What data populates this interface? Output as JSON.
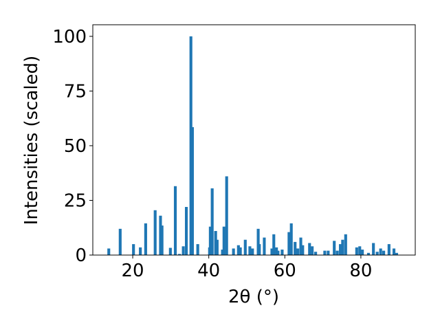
{
  "chart_data": {
    "type": "bar",
    "x_label": "2θ (°)",
    "y_label": "Intensities (scaled)",
    "color": "#1f77b4",
    "x": [
      13.7,
      16.7,
      20.2,
      22,
      23.4,
      25.9,
      27.3,
      27.7,
      29.9,
      31.2,
      32.3,
      33.3,
      34.1,
      35.3,
      35.7,
      37.1,
      40.2,
      40.4,
      40.9,
      41.8,
      42.2,
      43.6,
      44,
      44.7,
      46.5,
      47.8,
      48.3,
      49.6,
      50.8,
      51.5,
      53,
      53.3,
      54.6,
      56.6,
      57.1,
      57.8,
      58.2,
      59.3,
      61.1,
      61.7,
      62.7,
      63.4,
      64.2,
      64.7,
      66.5,
      67.2,
      68.1,
      70.5,
      71.4,
      73,
      73.8,
      74.6,
      75.2,
      76,
      78.9,
      79.7,
      80.4,
      82,
      83.3,
      84.3,
      85.2,
      86,
      87.4,
      88.7,
      89.4
    ],
    "values": [
      3,
      12,
      5,
      3.5,
      14.5,
      20.5,
      18,
      13.5,
      3.3,
      31.5,
      0.5,
      4,
      22,
      100,
      58.5,
      5,
      3.5,
      13,
      30.5,
      11,
      7,
      2.5,
      13,
      36,
      3,
      4.5,
      3.5,
      7,
      4,
      3,
      12,
      5,
      8,
      3,
      9.5,
      3.5,
      2,
      2.5,
      10.5,
      14.5,
      6,
      3,
      8,
      4.5,
      5.5,
      4,
      1.5,
      2,
      2,
      6.5,
      2,
      5,
      7,
      9.5,
      3.5,
      4,
      2.5,
      1,
      5.5,
      1.5,
      3,
      2,
      5,
      3,
      1
    ],
    "xlim": [
      9.5,
      94.3
    ],
    "xticks": [
      20,
      40,
      60,
      80
    ],
    "ylim": [
      0,
      105.3
    ],
    "yticks": [
      0,
      25,
      50,
      75,
      100
    ]
  }
}
